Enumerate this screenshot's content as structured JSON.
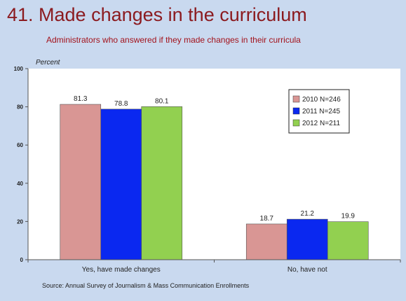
{
  "slide": {
    "title": "41. Made changes in the curriculum",
    "subtitle": "Administrators who answered if they made changes in their curricula",
    "source": "Source: Annual Survey of Journalism & Mass Communication Enrollments"
  },
  "chart_data": {
    "type": "bar",
    "ylabel": "Percent",
    "ylim": [
      0,
      100
    ],
    "yticks": [
      0,
      20,
      40,
      60,
      80,
      100
    ],
    "categories": [
      "Yes, have made changes",
      "No, have not"
    ],
    "series": [
      {
        "name": "2010  N=246",
        "values": [
          81.3,
          18.7
        ],
        "labels": [
          "81.3",
          "18.7"
        ],
        "color": "#d99694"
      },
      {
        "name": "2011  N=245",
        "values": [
          78.8,
          21.2
        ],
        "labels": [
          "78.8",
          "21.2"
        ],
        "color": "#0a28f0"
      },
      {
        "name": "2012  N=211",
        "values": [
          80.1,
          19.9
        ],
        "labels": [
          "80.1",
          "19.9"
        ],
        "color": "#92d050"
      }
    ],
    "legend_position": "top-right",
    "grid": false
  },
  "colors": {
    "background": "#c9d9ef",
    "plot_background": "#ffffff",
    "title": "#8b1a1f",
    "subtitle": "#a3121b"
  }
}
